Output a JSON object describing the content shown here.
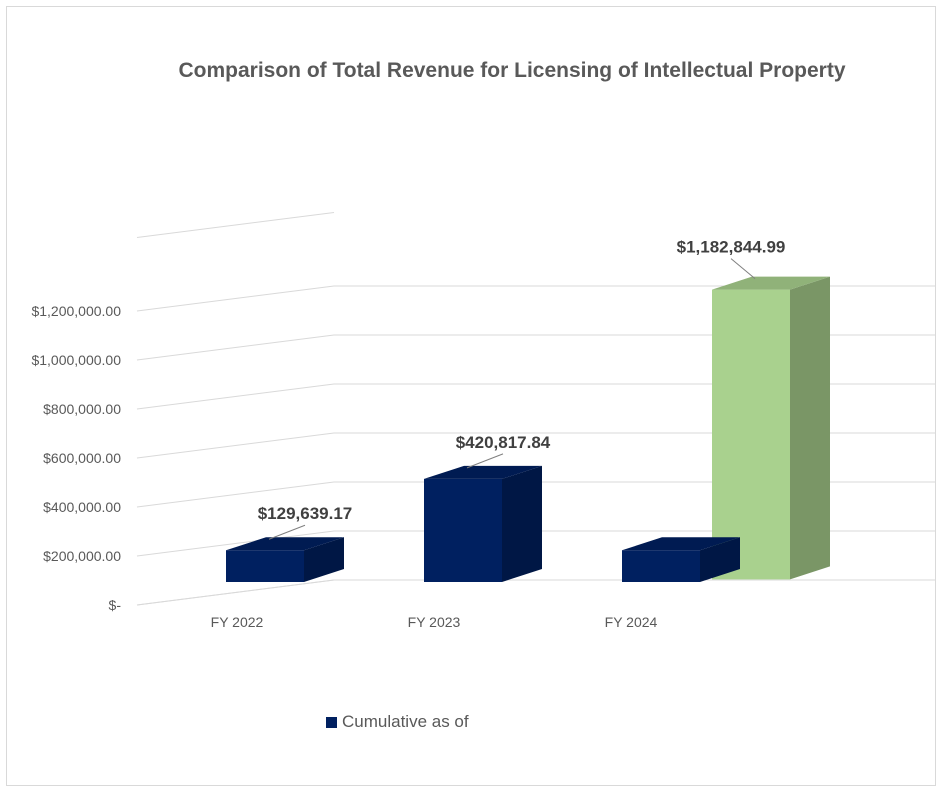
{
  "chart_data": {
    "type": "bar",
    "title": "Comparison of Total Revenue for Licensing of Intellectual Property",
    "categories": [
      "FY 2022",
      "FY 2023",
      "FY 2024"
    ],
    "series": [
      {
        "name": "Cumulative as of",
        "color": "#002060",
        "values": [
          129639.17,
          420817.84,
          129639.17
        ],
        "labels": [
          "$129,639.17",
          "$420,817.84",
          ""
        ]
      },
      {
        "name": "",
        "color": "#a9d18e",
        "values": [
          0,
          0,
          1182844.99
        ],
        "labels": [
          "",
          "",
          "$1,182,844.99"
        ]
      }
    ],
    "y_ticks": [
      "$-",
      "$200,000.00",
      "$400,000.00",
      "$600,000.00",
      "$800,000.00",
      "$1,000,000.00",
      "$1,200,000.00"
    ],
    "ylim": [
      0,
      1200000
    ],
    "grid": true,
    "legend_position": "bottom",
    "style": "3d-clustered-column"
  }
}
